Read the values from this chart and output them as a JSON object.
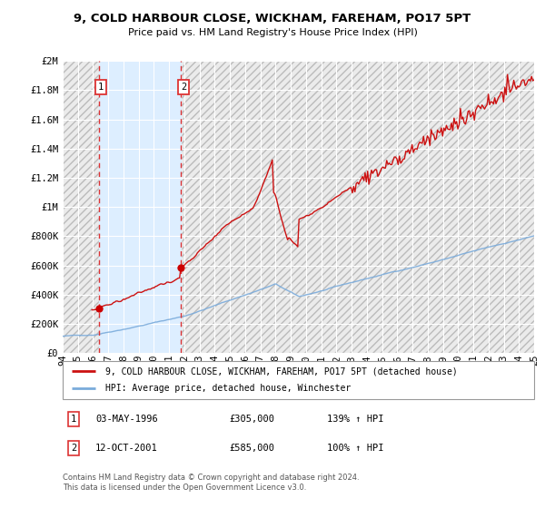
{
  "title": "9, COLD HARBOUR CLOSE, WICKHAM, FAREHAM, PO17 5PT",
  "subtitle": "Price paid vs. HM Land Registry's House Price Index (HPI)",
  "bg_color": "#ffffff",
  "plot_bg_color": "#f5f5f5",
  "grid_color": "#ffffff",
  "sale1_date": 1996.37,
  "sale1_price": 305000,
  "sale2_date": 2001.79,
  "sale2_price": 585000,
  "legend_line1": "9, COLD HARBOUR CLOSE, WICKHAM, FAREHAM, PO17 5PT (detached house)",
  "legend_line2": "HPI: Average price, detached house, Winchester",
  "table_row1": [
    "1",
    "03-MAY-1996",
    "£305,000",
    "139% ↑ HPI"
  ],
  "table_row2": [
    "2",
    "12-OCT-2001",
    "£585,000",
    "100% ↑ HPI"
  ],
  "footnote1": "Contains HM Land Registry data © Crown copyright and database right 2024.",
  "footnote2": "This data is licensed under the Open Government Licence v3.0.",
  "hpi_color": "#7aabdb",
  "price_color": "#cc1111",
  "sale_dot_color": "#cc0000",
  "vline_color": "#dd3333",
  "shade_color": "#ddeeff",
  "hatch_color": "#cccccc",
  "xlim": [
    1994.0,
    2025.0
  ],
  "ylim": [
    0,
    2000000
  ],
  "yticks": [
    0,
    200000,
    400000,
    600000,
    800000,
    1000000,
    1200000,
    1400000,
    1600000,
    1800000,
    2000000
  ]
}
